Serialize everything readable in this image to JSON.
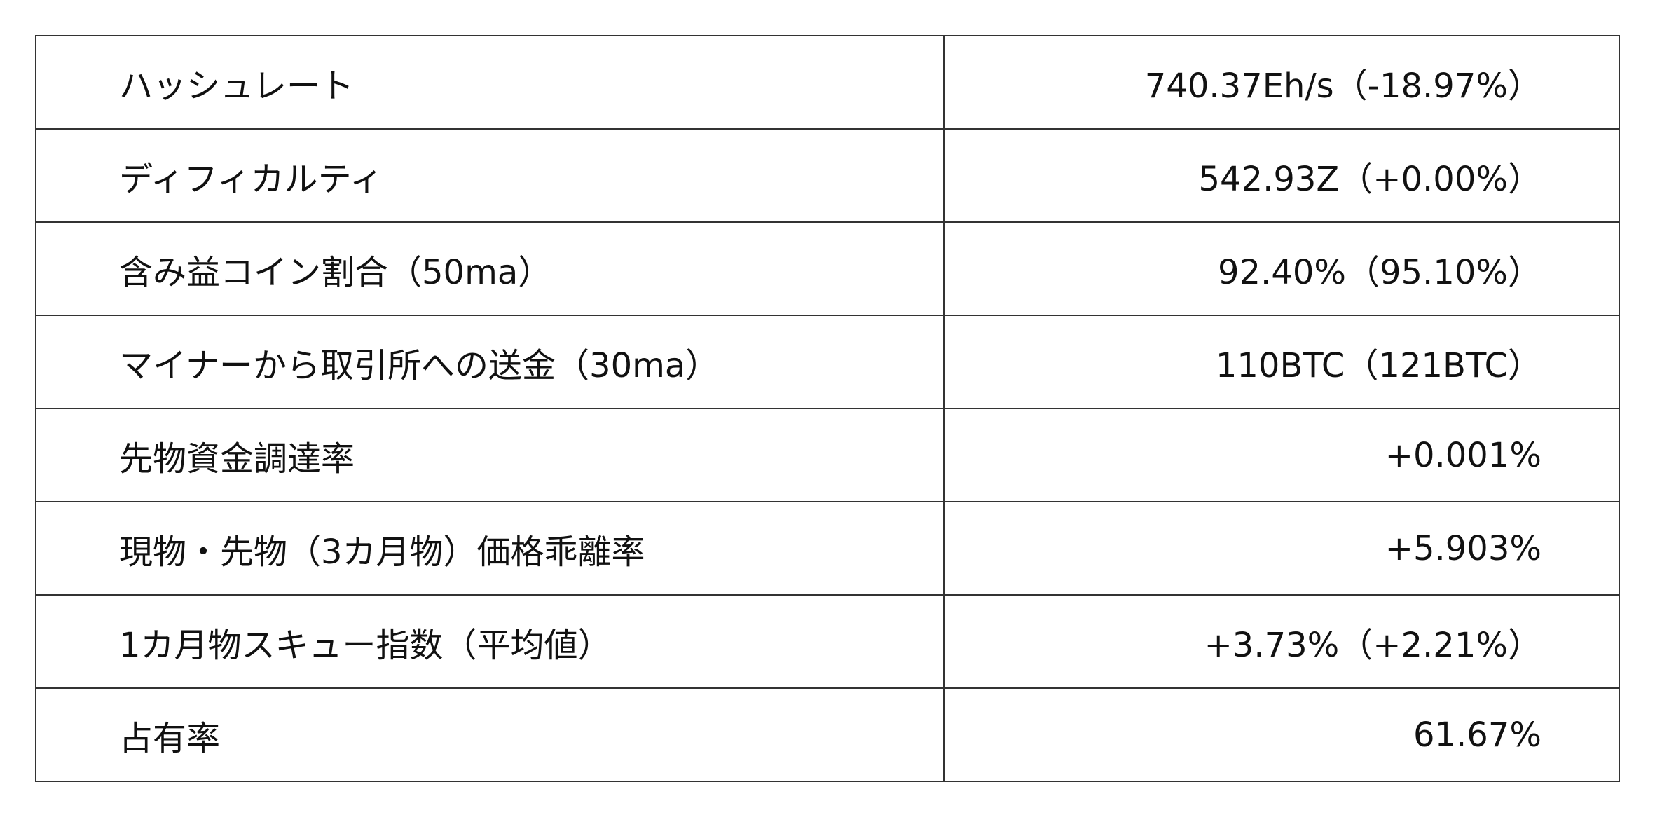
{
  "rows": [
    {
      "label": "ハッシュレート",
      "value": "740.37Eh/s（-18.97%）"
    },
    {
      "label": "ディフィカルティ",
      "value": "542.93Z（+0.00%）"
    },
    {
      "label": "含み益コイン割合（50ma）",
      "value": "92.40%（95.10%）"
    },
    {
      "label": "マイナーから取引所への送金（30ma）",
      "value": "110BTC（121BTC）"
    },
    {
      "label": "先物資金調達率",
      "value": "+0.001%"
    },
    {
      "label": "現物・先物（3カ月物）価格乖離率",
      "value": "+5.903%"
    },
    {
      "label": "1カ月物スキュー指数（平均値）",
      "value": "+3.73%（+2.21%）"
    },
    {
      "label": "占有率",
      "value": "61.67%"
    }
  ]
}
